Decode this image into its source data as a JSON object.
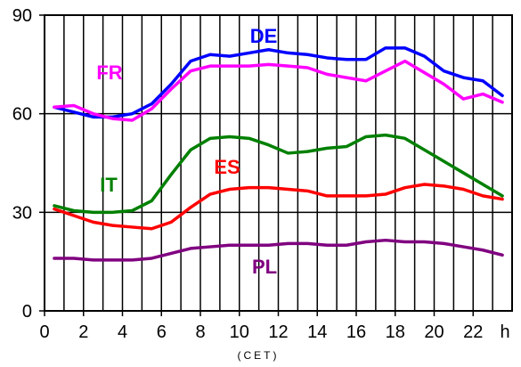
{
  "chart_data": {
    "type": "line",
    "xlabel": "(CET)",
    "x_unit": "h",
    "xlim": [
      0,
      24
    ],
    "ylim": [
      0,
      90
    ],
    "xticks": [
      0,
      2,
      4,
      6,
      8,
      10,
      12,
      14,
      16,
      18,
      20,
      22
    ],
    "yticks": [
      0,
      30,
      60,
      90
    ],
    "grid": true,
    "x": [
      0.5,
      1.5,
      2.5,
      3.5,
      4.5,
      5.5,
      6.5,
      7.5,
      8.5,
      9.5,
      10.5,
      11.5,
      12.5,
      13.5,
      14.5,
      15.5,
      16.5,
      17.5,
      18.5,
      19.5,
      20.5,
      21.5,
      22.5,
      23.5
    ],
    "series": [
      {
        "name": "DE",
        "color": "#0000ff",
        "values": [
          62,
          60.5,
          59,
          59,
          60,
          63,
          69,
          76,
          78,
          77.5,
          78.5,
          79.5,
          78.5,
          78,
          77,
          76.5,
          76.5,
          80,
          80,
          77.5,
          73,
          71,
          70,
          65.5
        ]
      },
      {
        "name": "FR",
        "color": "#ff00ff",
        "values": [
          62,
          62.5,
          60,
          58.5,
          58,
          61.5,
          67.5,
          73,
          74.5,
          74.5,
          74.5,
          75,
          74.5,
          74,
          72,
          71,
          70,
          73,
          76,
          72.5,
          69,
          64.5,
          66,
          63.5
        ]
      },
      {
        "name": "IT",
        "color": "#008000",
        "values": [
          32,
          30.5,
          30,
          30,
          30.5,
          33.5,
          41.5,
          49,
          52.5,
          53,
          52.5,
          50.5,
          48,
          48.5,
          49.5,
          50,
          53,
          53.5,
          52.5,
          49,
          45.5,
          42,
          38.5,
          35
        ]
      },
      {
        "name": "ES",
        "color": "#ff0000",
        "values": [
          31,
          29,
          27,
          26,
          25.5,
          25,
          27,
          31.5,
          35.5,
          37,
          37.5,
          37.5,
          37,
          36.5,
          35,
          35,
          35,
          35.5,
          37.5,
          38.5,
          38,
          37,
          35,
          34
        ]
      },
      {
        "name": "PL",
        "color": "#800080",
        "values": [
          16,
          16,
          15.5,
          15.5,
          15.5,
          16,
          17.5,
          19,
          19.5,
          20,
          20,
          20,
          20.5,
          20.5,
          20,
          20,
          21,
          21.5,
          21,
          21,
          20.5,
          19.5,
          18.5,
          17
        ]
      }
    ],
    "label_positions_note": ""
  }
}
